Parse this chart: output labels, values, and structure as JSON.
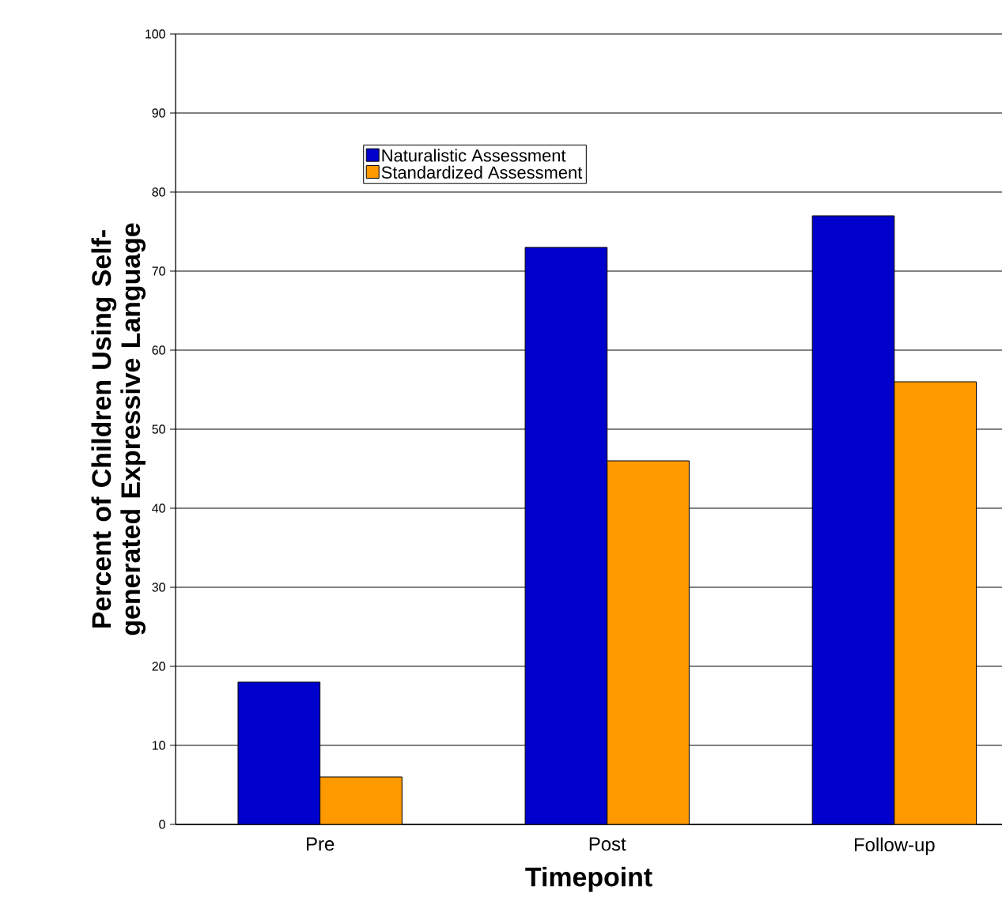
{
  "chart_data": {
    "type": "bar",
    "xlabel": "Timepoint",
    "ylabel": "Percent of Children Using Self-generated Expressive Language",
    "categories": [
      "Pre",
      "Post",
      "Follow-up"
    ],
    "series": [
      {
        "name": "Naturalistic Assessment",
        "color": "#0000cc",
        "values": [
          18,
          73,
          77
        ]
      },
      {
        "name": "Standardized Assessment",
        "color": "#ff9900",
        "values": [
          6,
          46,
          56
        ]
      }
    ],
    "ylim": [
      0,
      100
    ],
    "yticks": [
      0,
      10,
      20,
      30,
      40,
      50,
      60,
      70,
      80,
      90,
      100
    ],
    "grid": "y",
    "legend": "top left"
  }
}
